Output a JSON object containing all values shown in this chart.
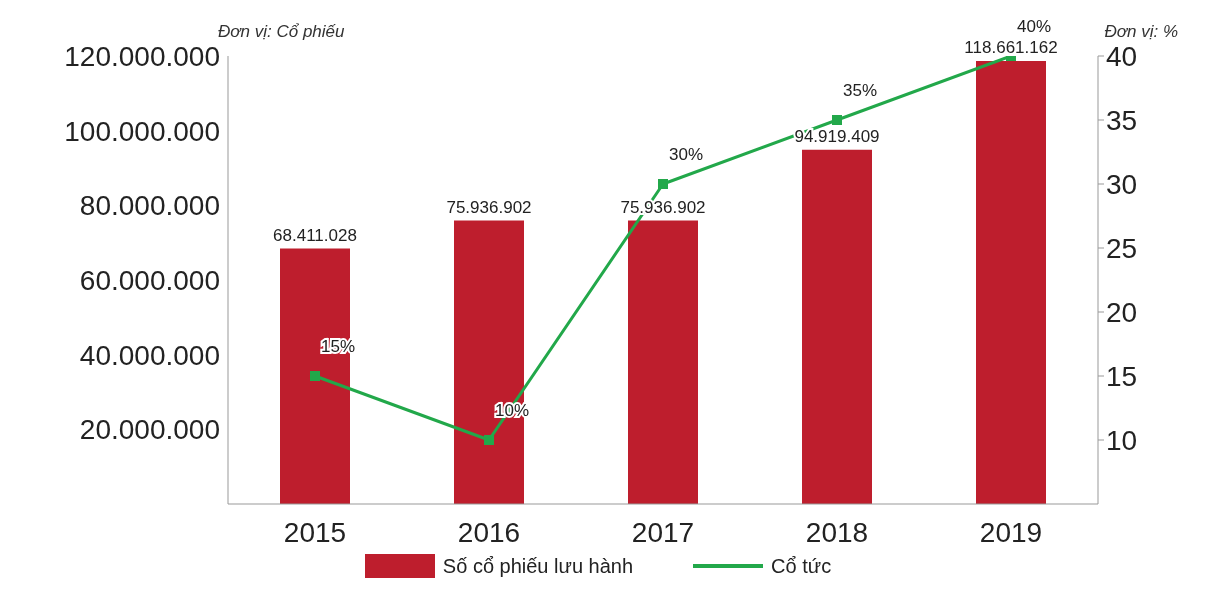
{
  "chart_data": {
    "type": "bar",
    "ylabel": "Đơn vị: Cổ phiếu",
    "y2label": "Đơn vị: %",
    "categories": [
      "2015",
      "2016",
      "2017",
      "2018",
      "2019"
    ],
    "series": [
      {
        "name": "Số cổ phiếu lưu hành",
        "color": "#be1e2d",
        "values": [
          68411028,
          75936902,
          75936902,
          94919409,
          118661162
        ],
        "value_labels": [
          "68.411.028",
          "75.936.902",
          "75.936.902",
          "94.919.409",
          "118.661.162"
        ]
      },
      {
        "name": "Cổ tức",
        "type": "line",
        "axis": "y2",
        "color": "#22a84a",
        "values": [
          15,
          10,
          30,
          35,
          40
        ],
        "value_labels": [
          "15%",
          "10%",
          "30%",
          "35%",
          "40%"
        ]
      }
    ],
    "ylim": [
      0,
      120000000
    ],
    "yticks": [
      {
        "value": 20000000,
        "label": "20.000.000"
      },
      {
        "value": 40000000,
        "label": "40.000.000"
      },
      {
        "value": 60000000,
        "label": "60.000.000"
      },
      {
        "value": 80000000,
        "label": "80.000.000"
      },
      {
        "value": 100000000,
        "label": "100.000.000"
      },
      {
        "value": 120000000,
        "label": "120.000.000"
      }
    ],
    "y2lim": [
      5,
      40
    ],
    "y2ticks": [
      10,
      15,
      20,
      25,
      30,
      35,
      40
    ],
    "legend": "bottom",
    "marker": "square",
    "line_style": "solid"
  }
}
